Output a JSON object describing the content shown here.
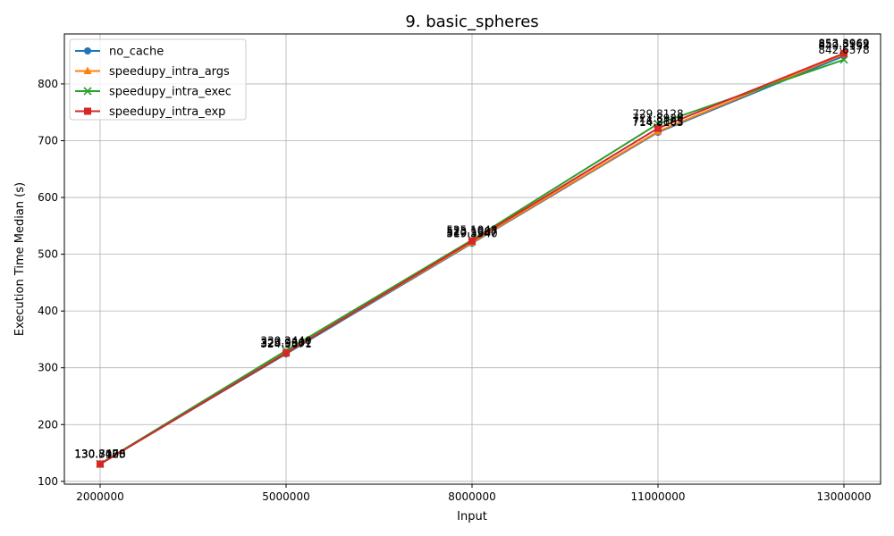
{
  "chart_data": {
    "type": "line",
    "title": "9. basic_spheres",
    "xlabel": "Input",
    "ylabel": "Execution Time Median (s)",
    "x": [
      "2000000",
      "5000000",
      "8000000",
      "11000000",
      "13000000"
    ],
    "ylim": [
      95,
      888
    ],
    "yticks": [
      "100",
      "200",
      "300",
      "400",
      "500",
      "600",
      "700",
      "800"
    ],
    "grid": true,
    "legend": "top-left",
    "series": [
      {
        "name": "no_cache",
        "color": "#1f77b4",
        "marker": "circle",
        "values": [
          130.5123,
          324.5871,
          519.394,
          714.8103,
          849.2158
        ],
        "labels": [
          "130.5123",
          "324.5871",
          "519.3940",
          "714.8103",
          "849.2158"
        ]
      },
      {
        "name": "speedupy_intra_args",
        "color": "#ff7f0e",
        "marker": "triangle",
        "values": [
          130.7108,
          326.9367,
          520.5547,
          716.2885,
          852.3962
        ],
        "labels": [
          "130.7108",
          "326.9367",
          "520.5547",
          "716.2885",
          "852.3962"
        ]
      },
      {
        "name": "speedupy_intra_exec",
        "color": "#2ca02c",
        "marker": "x",
        "values": [
          130.8478,
          330.244,
          525.1043,
          729.8128,
          842.6378
        ],
        "labels": [
          "130.8478",
          "330.2440",
          "525.1043",
          "729.8128",
          "842.6378"
        ]
      },
      {
        "name": "speedupy_intra_exp",
        "color": "#d62728",
        "marker": "square",
        "values": [
          130.306,
          325.9601,
          523.1907,
          721.892,
          853.8969
        ],
        "labels": [
          "130.3060",
          "325.9601",
          "523.1907",
          "721.8920",
          "853.8969"
        ]
      }
    ]
  }
}
